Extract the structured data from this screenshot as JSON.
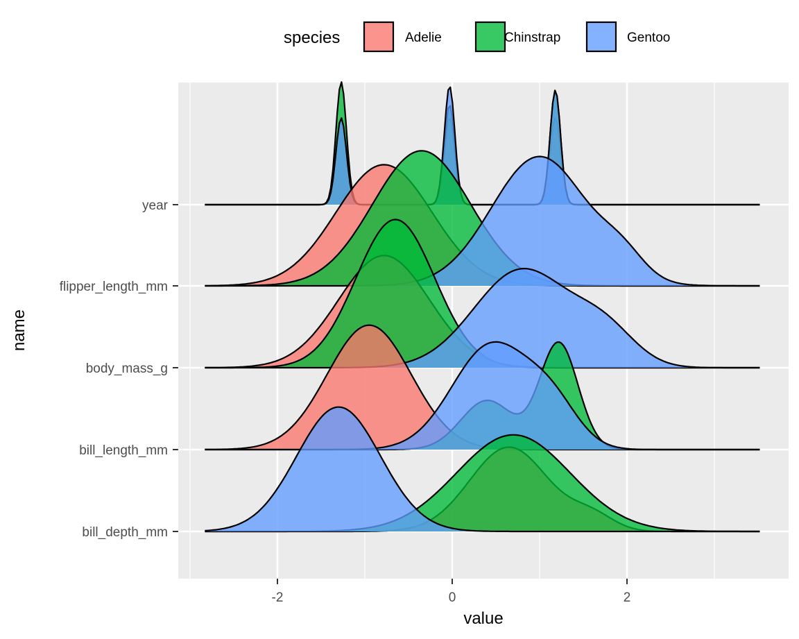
{
  "chart_data": {
    "type": "ridgeline",
    "xlabel": "value",
    "ylabel": "name",
    "xlim": [
      -3.0,
      3.8
    ],
    "x_ticks": [
      -2,
      0,
      2
    ],
    "x_tick_labels": [
      "-2",
      "0",
      "2"
    ],
    "categories": [
      "bill_depth_mm",
      "bill_length_mm",
      "body_mass_g",
      "flipper_length_mm",
      "year"
    ],
    "grid": true,
    "legend": {
      "title": "species",
      "position": "top",
      "entries": [
        {
          "name": "Adelie",
          "color": "#F8766D"
        },
        {
          "name": "Chinstrap",
          "color": "#00BA38"
        },
        {
          "name": "Gentoo",
          "color": "#619CFF"
        }
      ]
    },
    "x_range_drawn": [
      -2.83,
      3.52
    ],
    "ridge_scale_note": "curve values are ridge heights in row units above each baseline",
    "series": [
      {
        "name": "Adelie",
        "color": "#F8766D",
        "curves": {
          "year": [
            [
              -1.27,
              0.06,
              1.06
            ],
            [
              -0.03,
              0.06,
              1.06
            ],
            [
              1.18,
              0.06,
              1.06
            ]
          ],
          "flipper_length_mm": [
            [
              -0.78,
              0.55,
              1.48
            ]
          ],
          "body_mass_g": [
            [
              -0.78,
              0.52,
              1.37
            ]
          ],
          "bill_length_mm": [
            [
              -0.95,
              0.48,
              1.52
            ]
          ],
          "bill_depth_mm": [
            [
              0.65,
              0.45,
              1.03
            ],
            [
              1.6,
              0.25,
              0.18
            ]
          ]
        }
      },
      {
        "name": "Chinstrap",
        "color": "#00BA38",
        "curves": {
          "year": [
            [
              -1.27,
              0.06,
              1.5
            ],
            [
              -0.03,
              0.06,
              1.22
            ],
            [
              1.18,
              0.06,
              1.4
            ]
          ],
          "flipper_length_mm": [
            [
              -0.35,
              0.56,
              1.65
            ]
          ],
          "body_mass_g": [
            [
              -0.65,
              0.45,
              1.81
            ]
          ],
          "bill_length_mm": [
            [
              0.4,
              0.3,
              0.6
            ],
            [
              1.22,
              0.22,
              1.3
            ]
          ],
          "bill_depth_mm": [
            [
              0.7,
              0.65,
              1.18
            ]
          ]
        }
      },
      {
        "name": "Gentoo",
        "color": "#619CFF",
        "curves": {
          "year": [
            [
              -1.27,
              0.06,
              1.06
            ],
            [
              -0.03,
              0.06,
              1.45
            ],
            [
              1.18,
              0.06,
              1.4
            ]
          ],
          "flipper_length_mm": [
            [
              1.0,
              0.55,
              1.58
            ],
            [
              1.95,
              0.25,
              0.25
            ]
          ],
          "body_mass_g": [
            [
              0.8,
              0.55,
              1.2
            ],
            [
              1.75,
              0.35,
              0.4
            ]
          ],
          "bill_length_mm": [
            [
              0.45,
              0.45,
              1.28
            ],
            [
              1.15,
              0.3,
              0.45
            ]
          ],
          "bill_depth_mm": [
            [
              -1.3,
              0.48,
              1.52
            ]
          ]
        }
      }
    ]
  }
}
